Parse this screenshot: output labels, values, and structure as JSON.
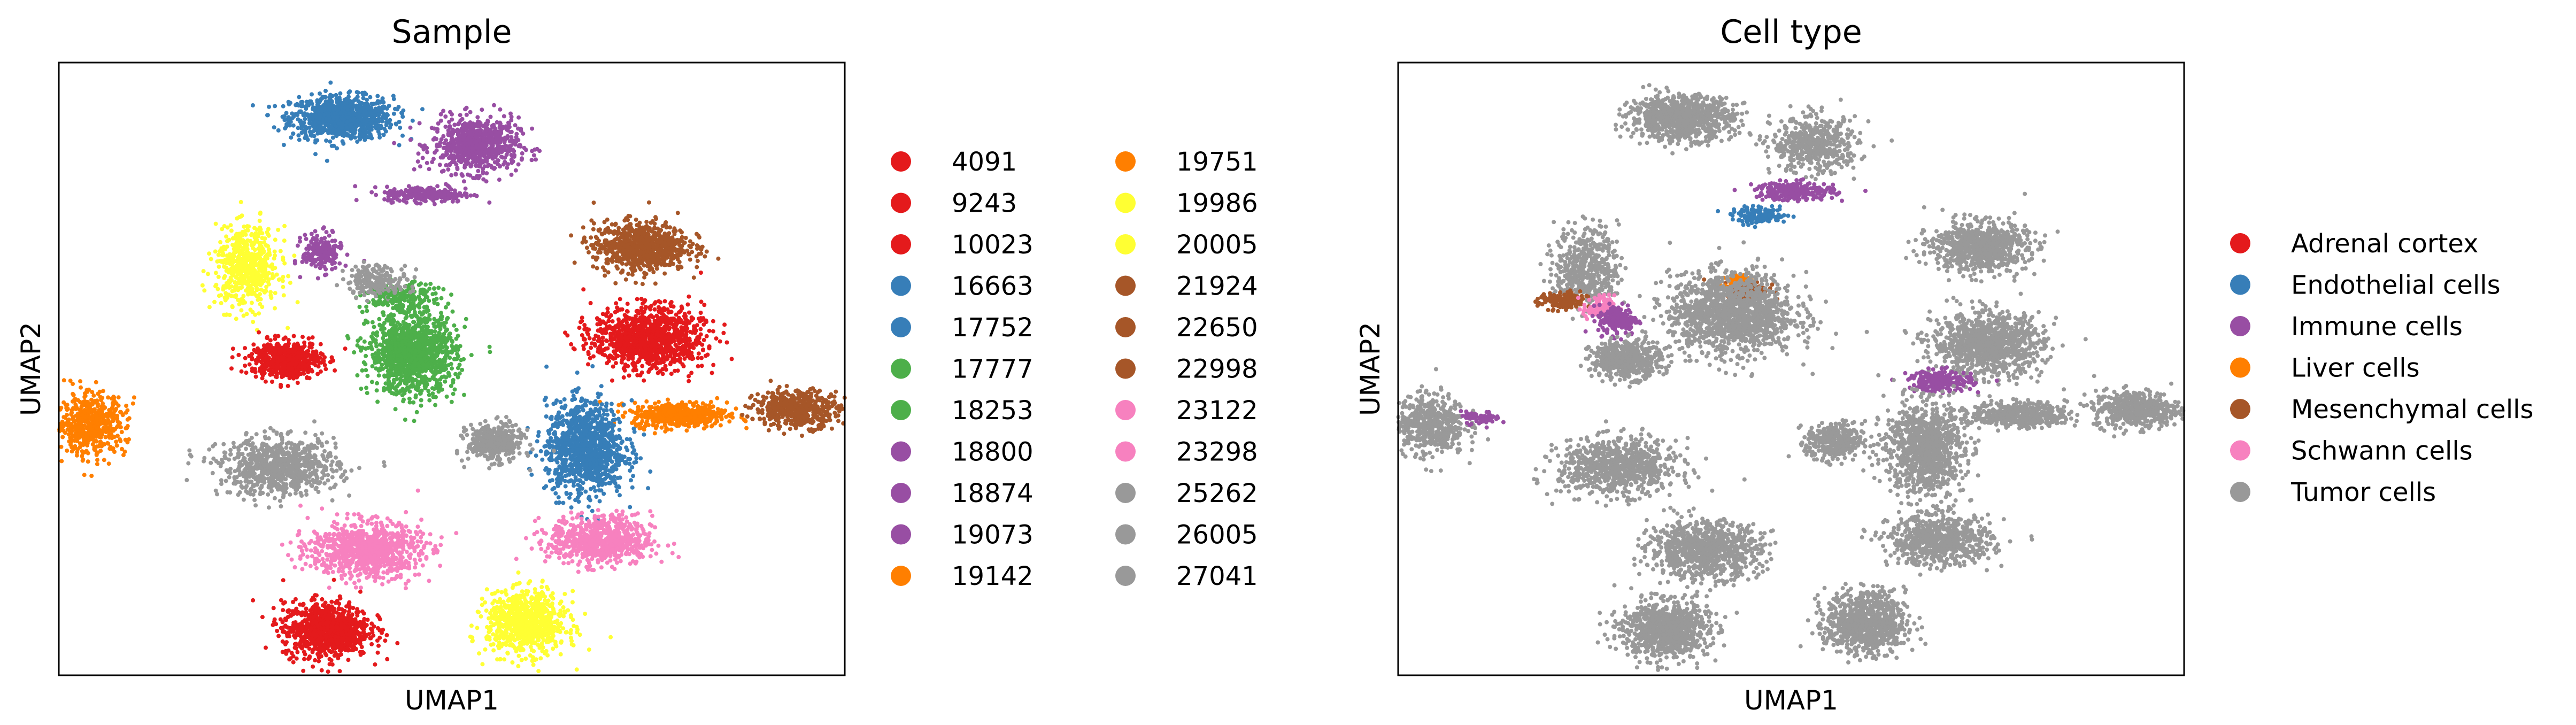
{
  "figure": {
    "background": "#ffffff"
  },
  "chart_data": [
    {
      "type": "scatter",
      "title": "Sample",
      "xlabel": "UMAP1",
      "ylabel": "UMAP2",
      "xlim": [
        -10,
        10
      ],
      "ylim": [
        -10,
        10
      ],
      "grid": false,
      "legend": {
        "placement": "right",
        "columns": 2,
        "entries": [
          {
            "label": "4091",
            "color": "#e41a1c"
          },
          {
            "label": "9243",
            "color": "#e41a1c"
          },
          {
            "label": "10023",
            "color": "#e41a1c"
          },
          {
            "label": "16663",
            "color": "#377eb8"
          },
          {
            "label": "17752",
            "color": "#377eb8"
          },
          {
            "label": "17777",
            "color": "#4daf4a"
          },
          {
            "label": "18253",
            "color": "#4daf4a"
          },
          {
            "label": "18800",
            "color": "#984ea3"
          },
          {
            "label": "18874",
            "color": "#984ea3"
          },
          {
            "label": "19073",
            "color": "#984ea3"
          },
          {
            "label": "19142",
            "color": "#ff7f00"
          },
          {
            "label": "19751",
            "color": "#ff7f00"
          },
          {
            "label": "19986",
            "color": "#ffff33"
          },
          {
            "label": "20005",
            "color": "#ffff33"
          },
          {
            "label": "21924",
            "color": "#a65628"
          },
          {
            "label": "22650",
            "color": "#a65628"
          },
          {
            "label": "22998",
            "color": "#a65628"
          },
          {
            "label": "23122",
            "color": "#f781bf"
          },
          {
            "label": "23298",
            "color": "#f781bf"
          },
          {
            "label": "25262",
            "color": "#999999"
          },
          {
            "label": "26005",
            "color": "#999999"
          },
          {
            "label": "27041",
            "color": "#999999"
          }
        ]
      },
      "clusters": [
        {
          "name": "blue-top",
          "x": -2.8,
          "y": 8.2,
          "rx": 1.3,
          "ry": 0.7,
          "color": "#377eb8",
          "n": 900
        },
        {
          "name": "purple-top",
          "x": 0.6,
          "y": 7.3,
          "rx": 1.1,
          "ry": 0.9,
          "color": "#984ea3",
          "n": 700
        },
        {
          "name": "purple-streak",
          "x": -0.6,
          "y": 5.7,
          "rx": 1.1,
          "ry": 0.25,
          "color": "#984ea3",
          "n": 250
        },
        {
          "name": "brown-right-top",
          "x": 4.8,
          "y": 4.0,
          "rx": 1.2,
          "ry": 0.8,
          "color": "#a65628",
          "n": 800
        },
        {
          "name": "yellow-upper",
          "x": -5.2,
          "y": 3.3,
          "rx": 0.8,
          "ry": 1.3,
          "color": "#ffff33",
          "n": 600
        },
        {
          "name": "purple-small",
          "x": -3.3,
          "y": 3.8,
          "rx": 0.5,
          "ry": 0.6,
          "color": "#984ea3",
          "n": 200
        },
        {
          "name": "green-small",
          "x": -1.3,
          "y": 2.3,
          "rx": 1.0,
          "ry": 0.5,
          "color": "#4daf4a",
          "n": 200
        },
        {
          "name": "gray-center",
          "x": -1.9,
          "y": 2.9,
          "rx": 0.8,
          "ry": 0.5,
          "color": "#999999",
          "n": 200
        },
        {
          "name": "green-large",
          "x": -1.0,
          "y": 0.5,
          "rx": 1.1,
          "ry": 1.3,
          "color": "#4daf4a",
          "n": 1200
        },
        {
          "name": "red-left",
          "x": -4.2,
          "y": 0.3,
          "rx": 0.9,
          "ry": 0.6,
          "color": "#e41a1c",
          "n": 600
        },
        {
          "name": "red-right",
          "x": 5.0,
          "y": 1.0,
          "rx": 1.4,
          "ry": 1.0,
          "color": "#e41a1c",
          "n": 1100
        },
        {
          "name": "orange-right",
          "x": 5.8,
          "y": -1.5,
          "rx": 1.2,
          "ry": 0.4,
          "color": "#ff7f00",
          "n": 500
        },
        {
          "name": "blue-right",
          "x": 3.4,
          "y": -2.6,
          "rx": 1.0,
          "ry": 1.5,
          "color": "#377eb8",
          "n": 1100
        },
        {
          "name": "gray-right",
          "x": 1.1,
          "y": -2.4,
          "rx": 0.7,
          "ry": 0.6,
          "color": "#999999",
          "n": 400
        },
        {
          "name": "brown-far-right",
          "x": 8.8,
          "y": -1.3,
          "rx": 1.1,
          "ry": 0.6,
          "color": "#a65628",
          "n": 500
        },
        {
          "name": "orange-far-left",
          "x": -9.2,
          "y": -1.8,
          "rx": 0.9,
          "ry": 1.0,
          "color": "#ff7f00",
          "n": 550
        },
        {
          "name": "gray-left",
          "x": -4.4,
          "y": -3.2,
          "rx": 1.5,
          "ry": 0.9,
          "color": "#999999",
          "n": 800
        },
        {
          "name": "pink-left",
          "x": -2.2,
          "y": -5.9,
          "rx": 1.4,
          "ry": 0.9,
          "color": "#f781bf",
          "n": 900
        },
        {
          "name": "pink-right",
          "x": 3.8,
          "y": -5.6,
          "rx": 1.3,
          "ry": 0.8,
          "color": "#f781bf",
          "n": 700
        },
        {
          "name": "red-bottom",
          "x": -3.2,
          "y": -8.5,
          "rx": 1.1,
          "ry": 0.9,
          "color": "#e41a1c",
          "n": 900
        },
        {
          "name": "yellow-bottom",
          "x": 1.9,
          "y": -8.3,
          "rx": 1.0,
          "ry": 1.0,
          "color": "#ffff33",
          "n": 850
        }
      ]
    },
    {
      "type": "scatter",
      "title": "Cell type",
      "xlabel": "UMAP1",
      "ylabel": "UMAP2",
      "xlim": [
        -10,
        10
      ],
      "ylim": [
        -10,
        10
      ],
      "grid": false,
      "legend": {
        "placement": "right",
        "columns": 1,
        "entries": [
          {
            "label": "Adrenal cortex",
            "color": "#e41a1c"
          },
          {
            "label": "Endothelial cells",
            "color": "#377eb8"
          },
          {
            "label": "Immune cells",
            "color": "#984ea3"
          },
          {
            "label": "Liver cells",
            "color": "#ff7f00"
          },
          {
            "label": "Mesenchymal cells",
            "color": "#a65628"
          },
          {
            "label": "Schwann cells",
            "color": "#f781bf"
          },
          {
            "label": "Tumor cells",
            "color": "#999999"
          }
        ]
      },
      "clusters": [
        {
          "name": "tumor-top",
          "x": -2.8,
          "y": 8.2,
          "rx": 1.3,
          "ry": 0.7,
          "color": "#999999",
          "n": 900
        },
        {
          "name": "tumor-top2",
          "x": 0.6,
          "y": 7.3,
          "rx": 1.1,
          "ry": 0.9,
          "color": "#999999",
          "n": 500
        },
        {
          "name": "immune-streak",
          "x": 0.1,
          "y": 5.8,
          "rx": 1.0,
          "ry": 0.3,
          "color": "#984ea3",
          "n": 250
        },
        {
          "name": "endo-streak",
          "x": -0.8,
          "y": 5.0,
          "rx": 0.7,
          "ry": 0.25,
          "color": "#377eb8",
          "n": 150
        },
        {
          "name": "tumor-right-top",
          "x": 4.8,
          "y": 4.0,
          "rx": 1.2,
          "ry": 0.8,
          "color": "#999999",
          "n": 800
        },
        {
          "name": "tumor-upper-left",
          "x": -5.2,
          "y": 3.3,
          "rx": 0.8,
          "ry": 1.3,
          "color": "#999999",
          "n": 500
        },
        {
          "name": "mes-left",
          "x": -5.8,
          "y": 2.2,
          "rx": 0.6,
          "ry": 0.3,
          "color": "#a65628",
          "n": 150
        },
        {
          "name": "schwann-left",
          "x": -4.9,
          "y": 2.0,
          "rx": 0.4,
          "ry": 0.4,
          "color": "#f781bf",
          "n": 100
        },
        {
          "name": "immune-left",
          "x": -4.4,
          "y": 1.6,
          "rx": 0.5,
          "ry": 0.5,
          "color": "#984ea3",
          "n": 180
        },
        {
          "name": "mes-center",
          "x": -1.2,
          "y": 2.6,
          "rx": 0.6,
          "ry": 0.3,
          "color": "#a65628",
          "n": 150
        },
        {
          "name": "liver-center",
          "x": -1.4,
          "y": 2.9,
          "rx": 0.3,
          "ry": 0.2,
          "color": "#ff7f00",
          "n": 50
        },
        {
          "name": "tumor-center",
          "x": -1.5,
          "y": 1.8,
          "rx": 1.6,
          "ry": 1.3,
          "color": "#999999",
          "n": 1400
        },
        {
          "name": "tumor-left",
          "x": -4.2,
          "y": 0.3,
          "rx": 0.9,
          "ry": 0.6,
          "color": "#999999",
          "n": 500
        },
        {
          "name": "tumor-right",
          "x": 5.0,
          "y": 0.8,
          "rx": 1.4,
          "ry": 1.0,
          "color": "#999999",
          "n": 1000
        },
        {
          "name": "immune-right",
          "x": 3.8,
          "y": -0.4,
          "rx": 0.8,
          "ry": 0.35,
          "color": "#984ea3",
          "n": 220
        },
        {
          "name": "tumor-right2",
          "x": 3.4,
          "y": -2.6,
          "rx": 1.0,
          "ry": 1.5,
          "color": "#999999",
          "n": 1000
        },
        {
          "name": "tumor-right3",
          "x": 5.8,
          "y": -1.5,
          "rx": 1.2,
          "ry": 0.4,
          "color": "#999999",
          "n": 450
        },
        {
          "name": "tumor-right4",
          "x": 1.1,
          "y": -2.4,
          "rx": 0.7,
          "ry": 0.6,
          "color": "#999999",
          "n": 350
        },
        {
          "name": "tumor-far-right",
          "x": 8.8,
          "y": -1.3,
          "rx": 1.1,
          "ry": 0.6,
          "color": "#999999",
          "n": 500
        },
        {
          "name": "tumor-far-left",
          "x": -9.2,
          "y": -1.8,
          "rx": 0.9,
          "ry": 1.0,
          "color": "#999999",
          "n": 500
        },
        {
          "name": "immune-far-left",
          "x": -7.9,
          "y": -1.6,
          "rx": 0.5,
          "ry": 0.2,
          "color": "#984ea3",
          "n": 60
        },
        {
          "name": "tumor-left2",
          "x": -4.4,
          "y": -3.2,
          "rx": 1.5,
          "ry": 0.9,
          "color": "#999999",
          "n": 800
        },
        {
          "name": "tumor-bottom-left",
          "x": -2.2,
          "y": -5.9,
          "rx": 1.4,
          "ry": 0.9,
          "color": "#999999",
          "n": 900
        },
        {
          "name": "tumor-bottom-right",
          "x": 3.8,
          "y": -5.6,
          "rx": 1.3,
          "ry": 0.8,
          "color": "#999999",
          "n": 700
        },
        {
          "name": "tumor-bottom-left2",
          "x": -3.2,
          "y": -8.5,
          "rx": 1.1,
          "ry": 0.9,
          "color": "#999999",
          "n": 900
        },
        {
          "name": "tumor-bottom-right2",
          "x": 1.9,
          "y": -8.3,
          "rx": 1.0,
          "ry": 1.0,
          "color": "#999999",
          "n": 850
        }
      ]
    }
  ]
}
